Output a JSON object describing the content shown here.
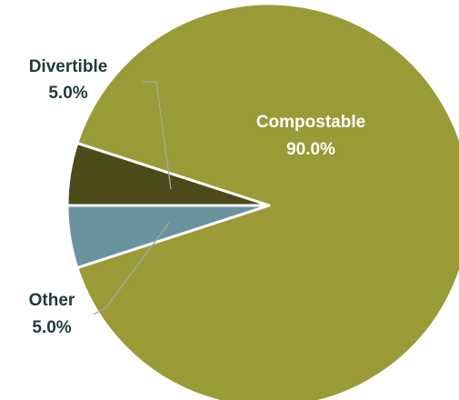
{
  "chart_data": {
    "type": "pie",
    "title": "",
    "slices": [
      {
        "label": "Compostable",
        "value": 90.0,
        "display": "90.0%",
        "color": "#9a9a37"
      },
      {
        "label": "Other",
        "value": 5.0,
        "display": "5.0%",
        "color": "#4b4a19"
      },
      {
        "label": "Divertible",
        "value": 5.0,
        "display": "5.0%",
        "color": "#6a93a0"
      }
    ],
    "legend": "none",
    "label_color_inside": "#ffffff",
    "label_color_outside": "#1f3a3a",
    "leader_line_color": "#a6a6a6"
  }
}
